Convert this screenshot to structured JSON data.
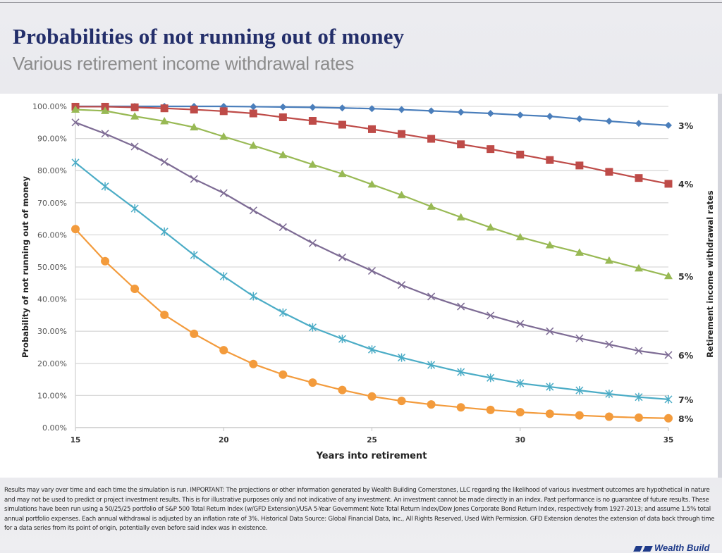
{
  "slide": {
    "title": "Probabilities of not running out of money",
    "subtitle": "Various retirement income withdrawal rates",
    "footer": "Results may vary over time and each time the simulation is run. IMPORTANT: The projections or other information generated by Wealth Building Cornerstones, LLC regarding the likelihood of various investment outcomes are hypothetical in nature and may not be used to predict or project investment results. This is for illustrative purposes only and not indicative of any investment. An investment cannot be made directly in an index. Past performance is no guarantee of future results. These simulations have been run using a 50/25/25 portfolio of S&P 500 Total Return Index (w/GFD Extension)/USA 5-Year Government Note Total Return Index/Dow Jones Corporate Bond Return Index, respectively from 1927-2013; and assume 1.5% total annual portfolio expenses. Each annual withdrawal is adjusted by an inflation rate of 3%. Historical Data Source: Global Financial Data, Inc., All Rights Reserved, Used With Permission. GFD Extension denotes the extension of data back through time for a data series from its point of origin, potentially even before said index was in existence.",
    "logo_text": "Wealth Build"
  },
  "chart_data": {
    "type": "line",
    "title": "",
    "xlabel": "Years into retirement",
    "ylabel": "Probability of not running out of money",
    "y2label": "Retirement income withdrawal rates",
    "x": [
      15,
      16,
      17,
      18,
      19,
      20,
      21,
      22,
      23,
      24,
      25,
      26,
      27,
      28,
      29,
      30,
      31,
      32,
      33,
      34,
      35
    ],
    "xticks": [
      15,
      20,
      25,
      30,
      35
    ],
    "xlim": [
      15,
      35
    ],
    "ylim": [
      0,
      100
    ],
    "yticks": [
      "0.00%",
      "10.00%",
      "20.00%",
      "30.00%",
      "40.00%",
      "50.00%",
      "60.00%",
      "70.00%",
      "80.00%",
      "90.00%",
      "100.00%"
    ],
    "grid": "horizontal",
    "legend": "end-of-line labels on right",
    "series": [
      {
        "name": "3%",
        "color": "#4a7ebb",
        "marker": "diamond",
        "values": [
          100,
          100,
          100,
          100,
          100,
          100,
          99.9,
          99.8,
          99.7,
          99.5,
          99.3,
          99.0,
          98.6,
          98.2,
          97.8,
          97.3,
          96.9,
          96.1,
          95.4,
          94.7,
          94.1
        ]
      },
      {
        "name": "4%",
        "color": "#be4b48",
        "marker": "square",
        "values": [
          99.9,
          99.9,
          99.7,
          99.4,
          99.0,
          98.5,
          97.8,
          96.6,
          95.5,
          94.3,
          92.9,
          91.4,
          89.9,
          88.2,
          86.7,
          85.0,
          83.3,
          81.6,
          79.6,
          77.7,
          75.9
        ]
      },
      {
        "name": "5%",
        "color": "#98b954",
        "marker": "triangle",
        "values": [
          99.0,
          98.6,
          96.9,
          95.4,
          93.5,
          90.6,
          87.8,
          84.9,
          81.9,
          79.0,
          75.7,
          72.4,
          68.8,
          65.5,
          62.3,
          59.3,
          56.8,
          54.5,
          52.0,
          49.6,
          47.2
        ]
      },
      {
        "name": "6%",
        "color": "#7d6b94",
        "marker": "x",
        "values": [
          95.0,
          91.5,
          87.5,
          82.7,
          77.4,
          73.0,
          67.6,
          62.4,
          57.4,
          53.0,
          48.8,
          44.4,
          40.8,
          37.7,
          34.9,
          32.3,
          30.0,
          27.8,
          25.9,
          23.9,
          22.6
        ]
      },
      {
        "name": "7%",
        "color": "#4bacc6",
        "marker": "star",
        "values": [
          82.5,
          75.1,
          68.2,
          61.0,
          53.7,
          47.1,
          40.9,
          35.8,
          31.2,
          27.6,
          24.3,
          21.8,
          19.5,
          17.3,
          15.5,
          13.8,
          12.7,
          11.6,
          10.5,
          9.5,
          8.8
        ]
      },
      {
        "name": "8%",
        "color": "#f39b3c",
        "marker": "circle",
        "values": [
          61.8,
          51.8,
          43.2,
          35.1,
          29.2,
          24.1,
          19.8,
          16.5,
          14.0,
          11.7,
          9.7,
          8.3,
          7.2,
          6.3,
          5.5,
          4.8,
          4.3,
          3.8,
          3.4,
          3.1,
          2.9
        ]
      }
    ]
  }
}
